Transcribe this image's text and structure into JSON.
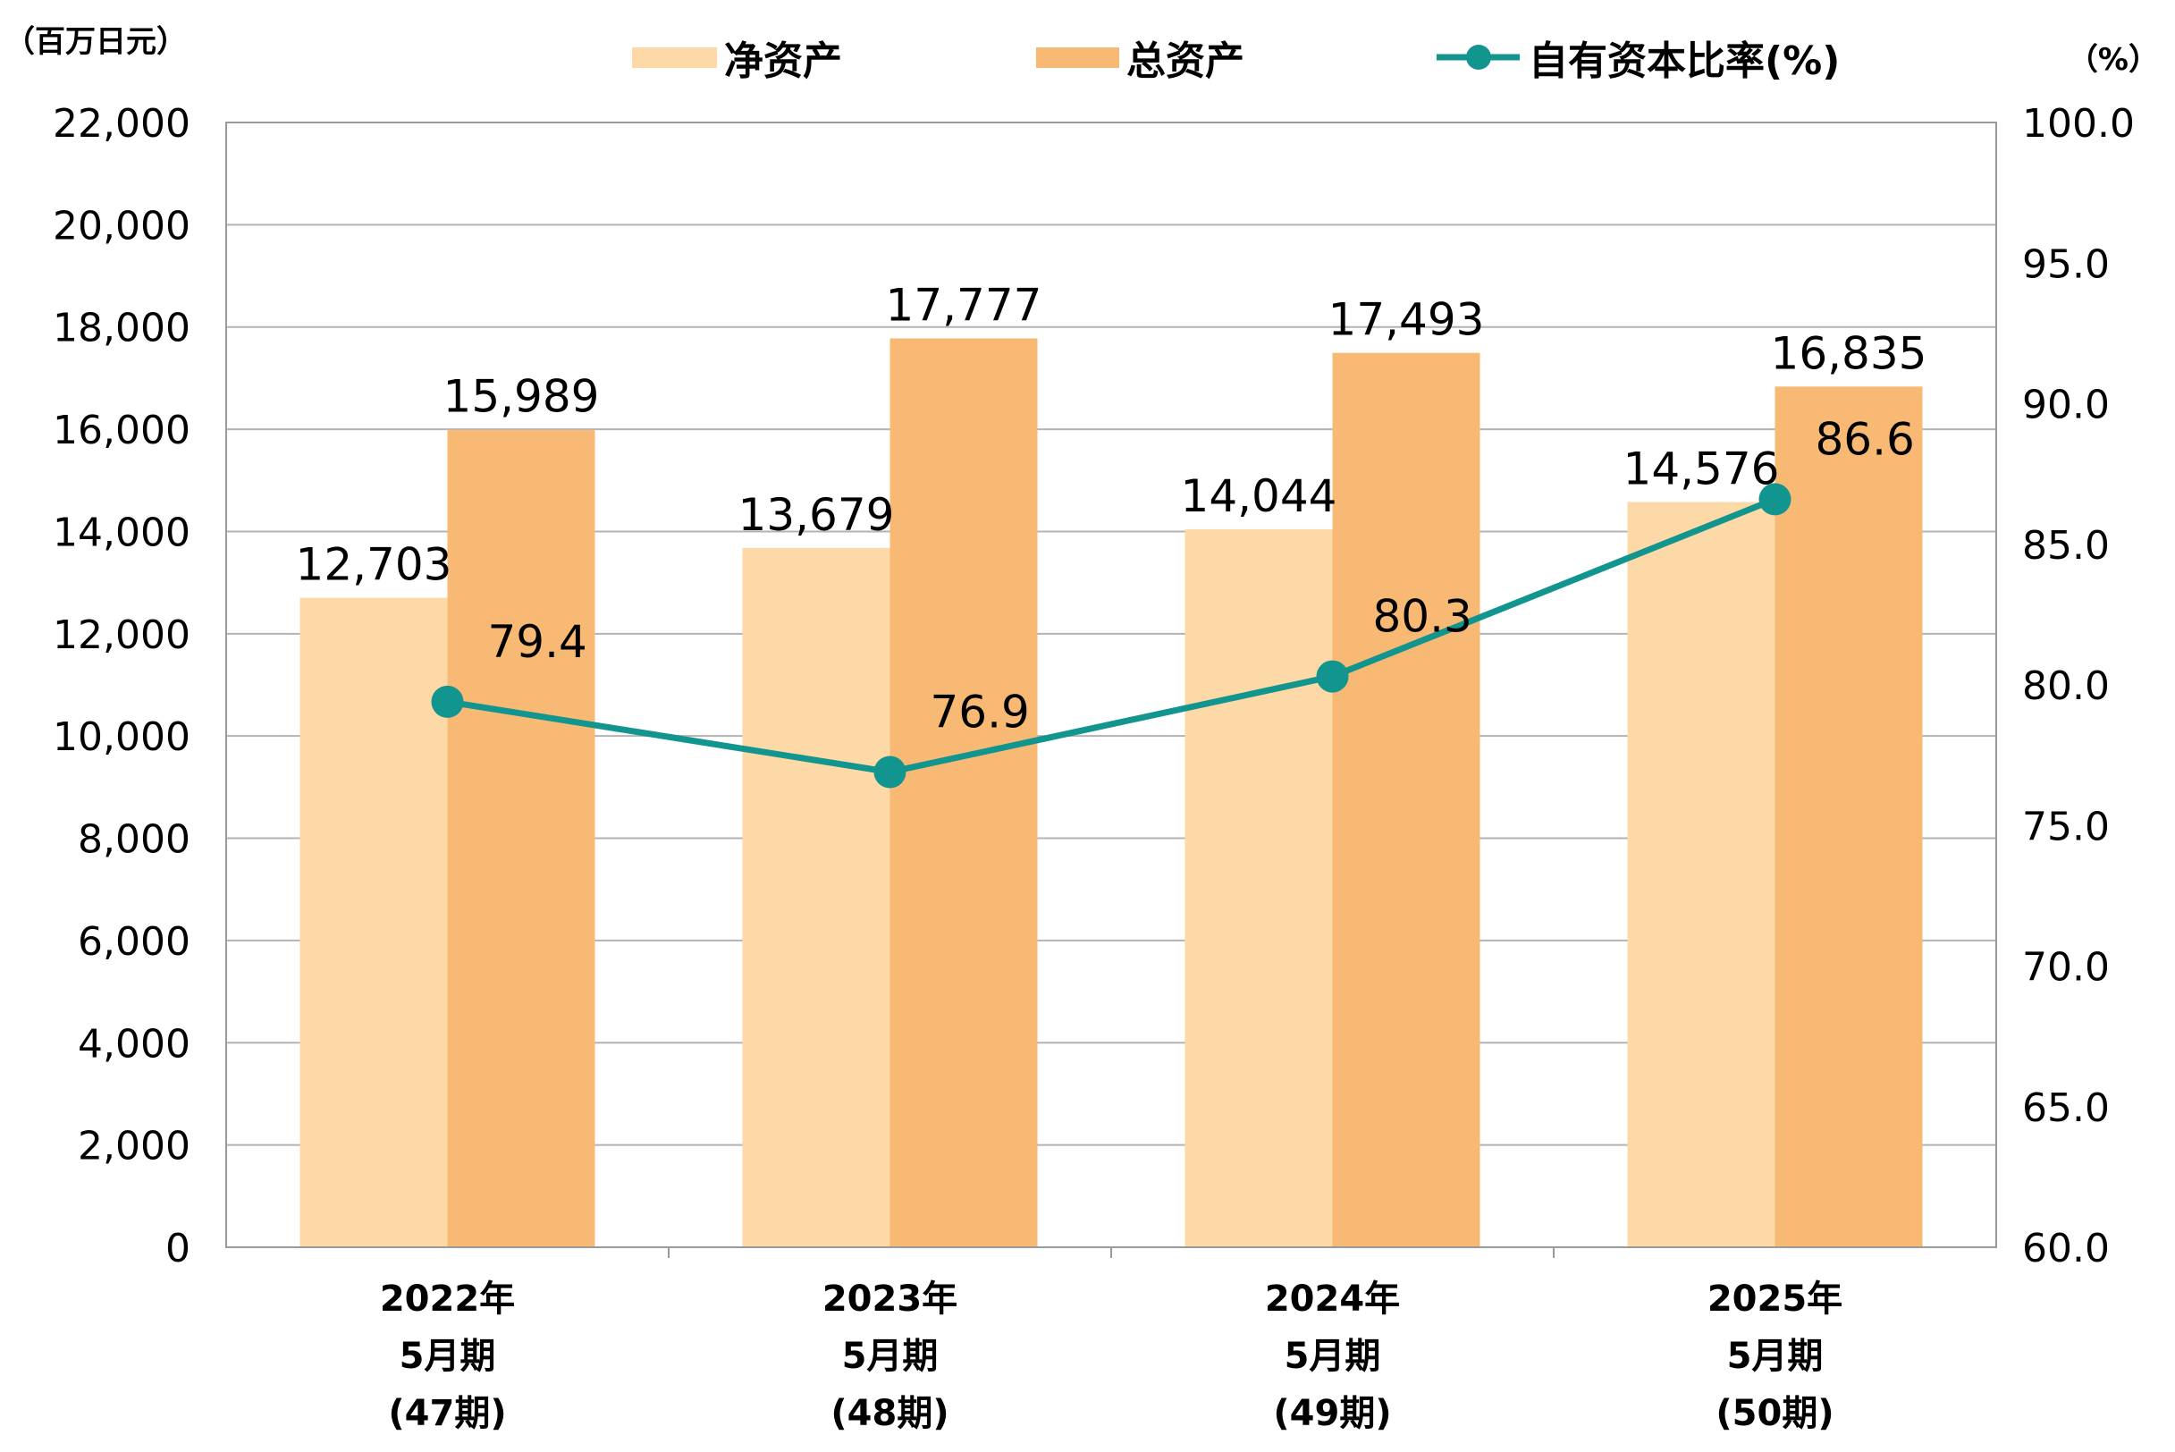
{
  "chart_data": {
    "type": "bar",
    "categories": [
      [
        "2022年",
        "5月期",
        "(47期)"
      ],
      [
        "2023年",
        "5月期",
        "(48期)"
      ],
      [
        "2024年",
        "5月期",
        "(49期)"
      ],
      [
        "2025年",
        "5月期",
        "(50期)"
      ]
    ],
    "series": [
      {
        "name": "净资产",
        "kind": "bar",
        "axis": "left",
        "color": "#FCD9A6",
        "values": [
          12703,
          13679,
          14044,
          14576
        ],
        "labels": [
          "12,703",
          "13,679",
          "14,044",
          "14,576"
        ]
      },
      {
        "name": "总资产",
        "kind": "bar",
        "axis": "left",
        "color": "#F8B975",
        "values": [
          15989,
          17777,
          17493,
          16835
        ],
        "labels": [
          "15,989",
          "17,777",
          "17,493",
          "16,835"
        ]
      },
      {
        "name": "自有资本比率(%)",
        "kind": "line",
        "axis": "right",
        "color": "#12958F",
        "values": [
          79.4,
          76.9,
          80.3,
          86.6
        ],
        "labels": [
          "79.4",
          "76.9",
          "80.3",
          "86.6"
        ]
      }
    ],
    "y_left": {
      "unit_label": "（百万日元）",
      "ylim": [
        0,
        22000
      ],
      "ticks": [
        0,
        2000,
        4000,
        6000,
        8000,
        10000,
        12000,
        14000,
        16000,
        18000,
        20000,
        22000
      ],
      "tick_labels": [
        "0",
        "2,000",
        "4,000",
        "6,000",
        "8,000",
        "10,000",
        "12,000",
        "14,000",
        "16,000",
        "18,000",
        "20,000",
        "22,000"
      ]
    },
    "y_right": {
      "unit_label": "（%）",
      "ylim": [
        60,
        100
      ],
      "ticks": [
        60,
        65,
        70,
        75,
        80,
        85,
        90,
        95,
        100
      ],
      "tick_labels": [
        "60.0",
        "65.0",
        "70.0",
        "75.0",
        "80.0",
        "85.0",
        "90.0",
        "95.0",
        "100.0"
      ]
    },
    "grid": true,
    "legend_position": "top"
  }
}
